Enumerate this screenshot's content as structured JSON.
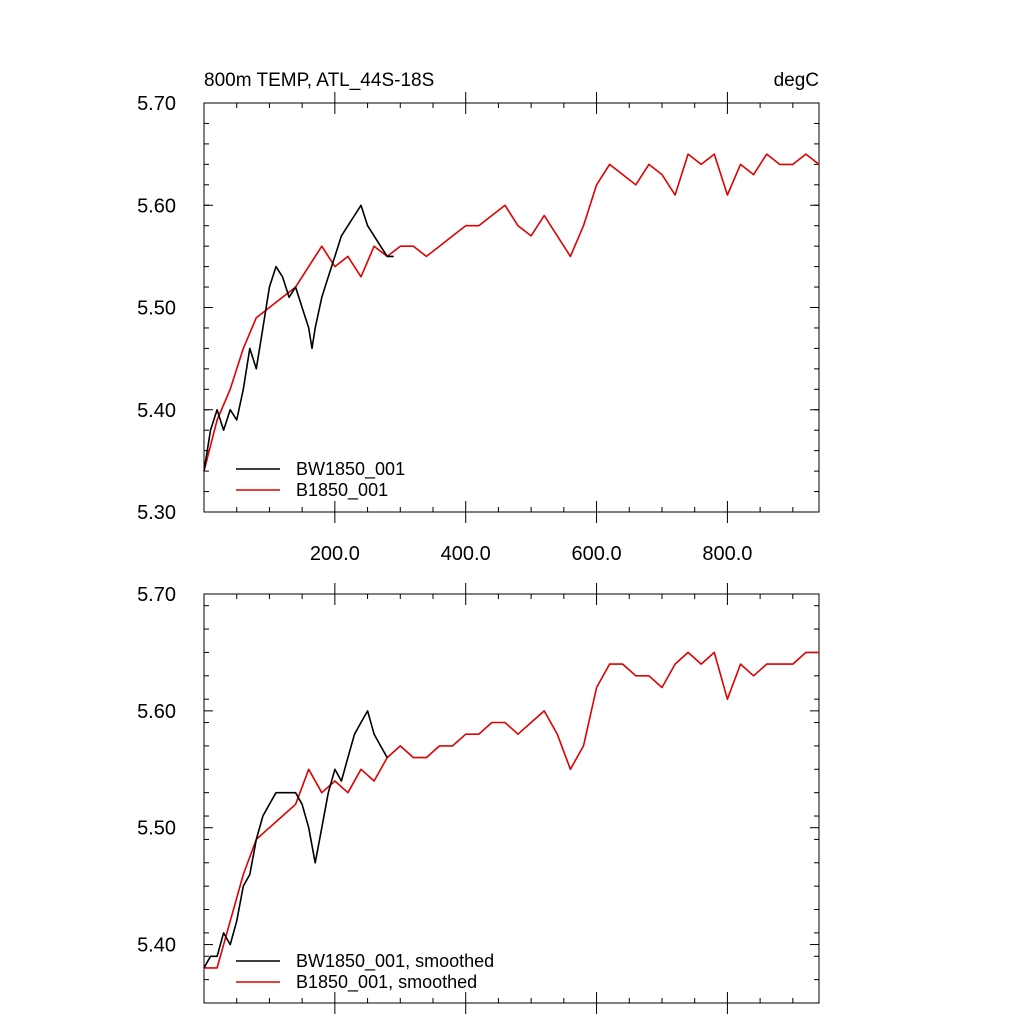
{
  "colors": {
    "bw1850": "#000000",
    "b1850": "#e00000"
  },
  "chart_data": [
    {
      "type": "line",
      "title": "800m TEMP, ATL_44S-18S",
      "units": "degC",
      "ylim": [
        5.3,
        5.7
      ],
      "xlim": [
        0,
        940
      ],
      "yticks": [
        5.3,
        5.4,
        5.5,
        5.6,
        5.7
      ],
      "ytick_labels": [
        "5.30",
        "5.40",
        "5.50",
        "5.60",
        "5.70"
      ],
      "xticks": [
        200,
        400,
        600,
        800
      ],
      "xtick_labels": [
        "200.0",
        "400.0",
        "600.0",
        "800.0"
      ],
      "grid": false,
      "legend": "bottom-left",
      "series": [
        {
          "name": "BW1850_001",
          "color": "#000000",
          "x": [
            0,
            10,
            20,
            30,
            40,
            50,
            60,
            70,
            80,
            90,
            100,
            110,
            120,
            130,
            140,
            150,
            160,
            165,
            170,
            180,
            190,
            200,
            210,
            220,
            230,
            240,
            250,
            260,
            270,
            280,
            290
          ],
          "y": [
            5.34,
            5.38,
            5.4,
            5.38,
            5.4,
            5.39,
            5.42,
            5.46,
            5.44,
            5.48,
            5.52,
            5.54,
            5.53,
            5.51,
            5.52,
            5.5,
            5.48,
            5.46,
            5.48,
            5.51,
            5.53,
            5.55,
            5.57,
            5.58,
            5.59,
            5.6,
            5.58,
            5.57,
            5.56,
            5.55,
            5.55
          ]
        },
        {
          "name": "B1850_001",
          "color": "#e00000",
          "x": [
            0,
            20,
            40,
            60,
            80,
            100,
            120,
            140,
            160,
            180,
            200,
            220,
            240,
            260,
            280,
            300,
            320,
            340,
            360,
            380,
            400,
            420,
            440,
            460,
            480,
            500,
            520,
            540,
            560,
            580,
            600,
            620,
            640,
            660,
            680,
            700,
            720,
            740,
            760,
            780,
            800,
            820,
            840,
            860,
            880,
            900,
            920,
            940
          ],
          "y": [
            5.34,
            5.39,
            5.42,
            5.46,
            5.49,
            5.5,
            5.51,
            5.52,
            5.54,
            5.56,
            5.54,
            5.55,
            5.53,
            5.56,
            5.55,
            5.56,
            5.56,
            5.55,
            5.56,
            5.57,
            5.58,
            5.58,
            5.59,
            5.6,
            5.58,
            5.57,
            5.59,
            5.57,
            5.55,
            5.58,
            5.62,
            5.64,
            5.63,
            5.62,
            5.64,
            5.63,
            5.61,
            5.65,
            5.64,
            5.65,
            5.61,
            5.64,
            5.63,
            5.65,
            5.64,
            5.64,
            5.65,
            5.64
          ]
        }
      ]
    },
    {
      "type": "line",
      "ylim": [
        5.35,
        5.7
      ],
      "xlim": [
        0,
        940
      ],
      "yticks": [
        5.4,
        5.5,
        5.6,
        5.7
      ],
      "ytick_labels": [
        "5.40",
        "5.50",
        "5.60",
        "5.70"
      ],
      "xticks": [
        200,
        400,
        600,
        800
      ],
      "grid": false,
      "legend": "bottom-left",
      "series": [
        {
          "name": "BW1850_001, smoothed",
          "color": "#000000",
          "x": [
            0,
            10,
            20,
            30,
            40,
            50,
            60,
            70,
            80,
            90,
            100,
            110,
            120,
            130,
            140,
            150,
            160,
            170,
            180,
            190,
            200,
            210,
            220,
            230,
            240,
            250,
            260,
            270,
            280
          ],
          "y": [
            5.38,
            5.39,
            5.39,
            5.41,
            5.4,
            5.42,
            5.45,
            5.46,
            5.49,
            5.51,
            5.52,
            5.53,
            5.53,
            5.53,
            5.53,
            5.52,
            5.5,
            5.47,
            5.5,
            5.53,
            5.55,
            5.54,
            5.56,
            5.58,
            5.59,
            5.6,
            5.58,
            5.57,
            5.56
          ]
        },
        {
          "name": "B1850_001, smoothed",
          "color": "#e00000",
          "x": [
            0,
            20,
            40,
            60,
            80,
            100,
            120,
            140,
            160,
            180,
            200,
            220,
            240,
            260,
            280,
            300,
            320,
            340,
            360,
            380,
            400,
            420,
            440,
            460,
            480,
            500,
            520,
            540,
            560,
            580,
            600,
            620,
            640,
            660,
            680,
            700,
            720,
            740,
            760,
            780,
            800,
            820,
            840,
            860,
            880,
            900,
            920,
            940
          ],
          "y": [
            5.38,
            5.38,
            5.42,
            5.46,
            5.49,
            5.5,
            5.51,
            5.52,
            5.55,
            5.53,
            5.54,
            5.53,
            5.55,
            5.54,
            5.56,
            5.57,
            5.56,
            5.56,
            5.57,
            5.57,
            5.58,
            5.58,
            5.59,
            5.59,
            5.58,
            5.59,
            5.6,
            5.58,
            5.55,
            5.57,
            5.62,
            5.64,
            5.64,
            5.63,
            5.63,
            5.62,
            5.64,
            5.65,
            5.64,
            5.65,
            5.61,
            5.64,
            5.63,
            5.64,
            5.64,
            5.64,
            5.65,
            5.65
          ]
        }
      ]
    }
  ]
}
